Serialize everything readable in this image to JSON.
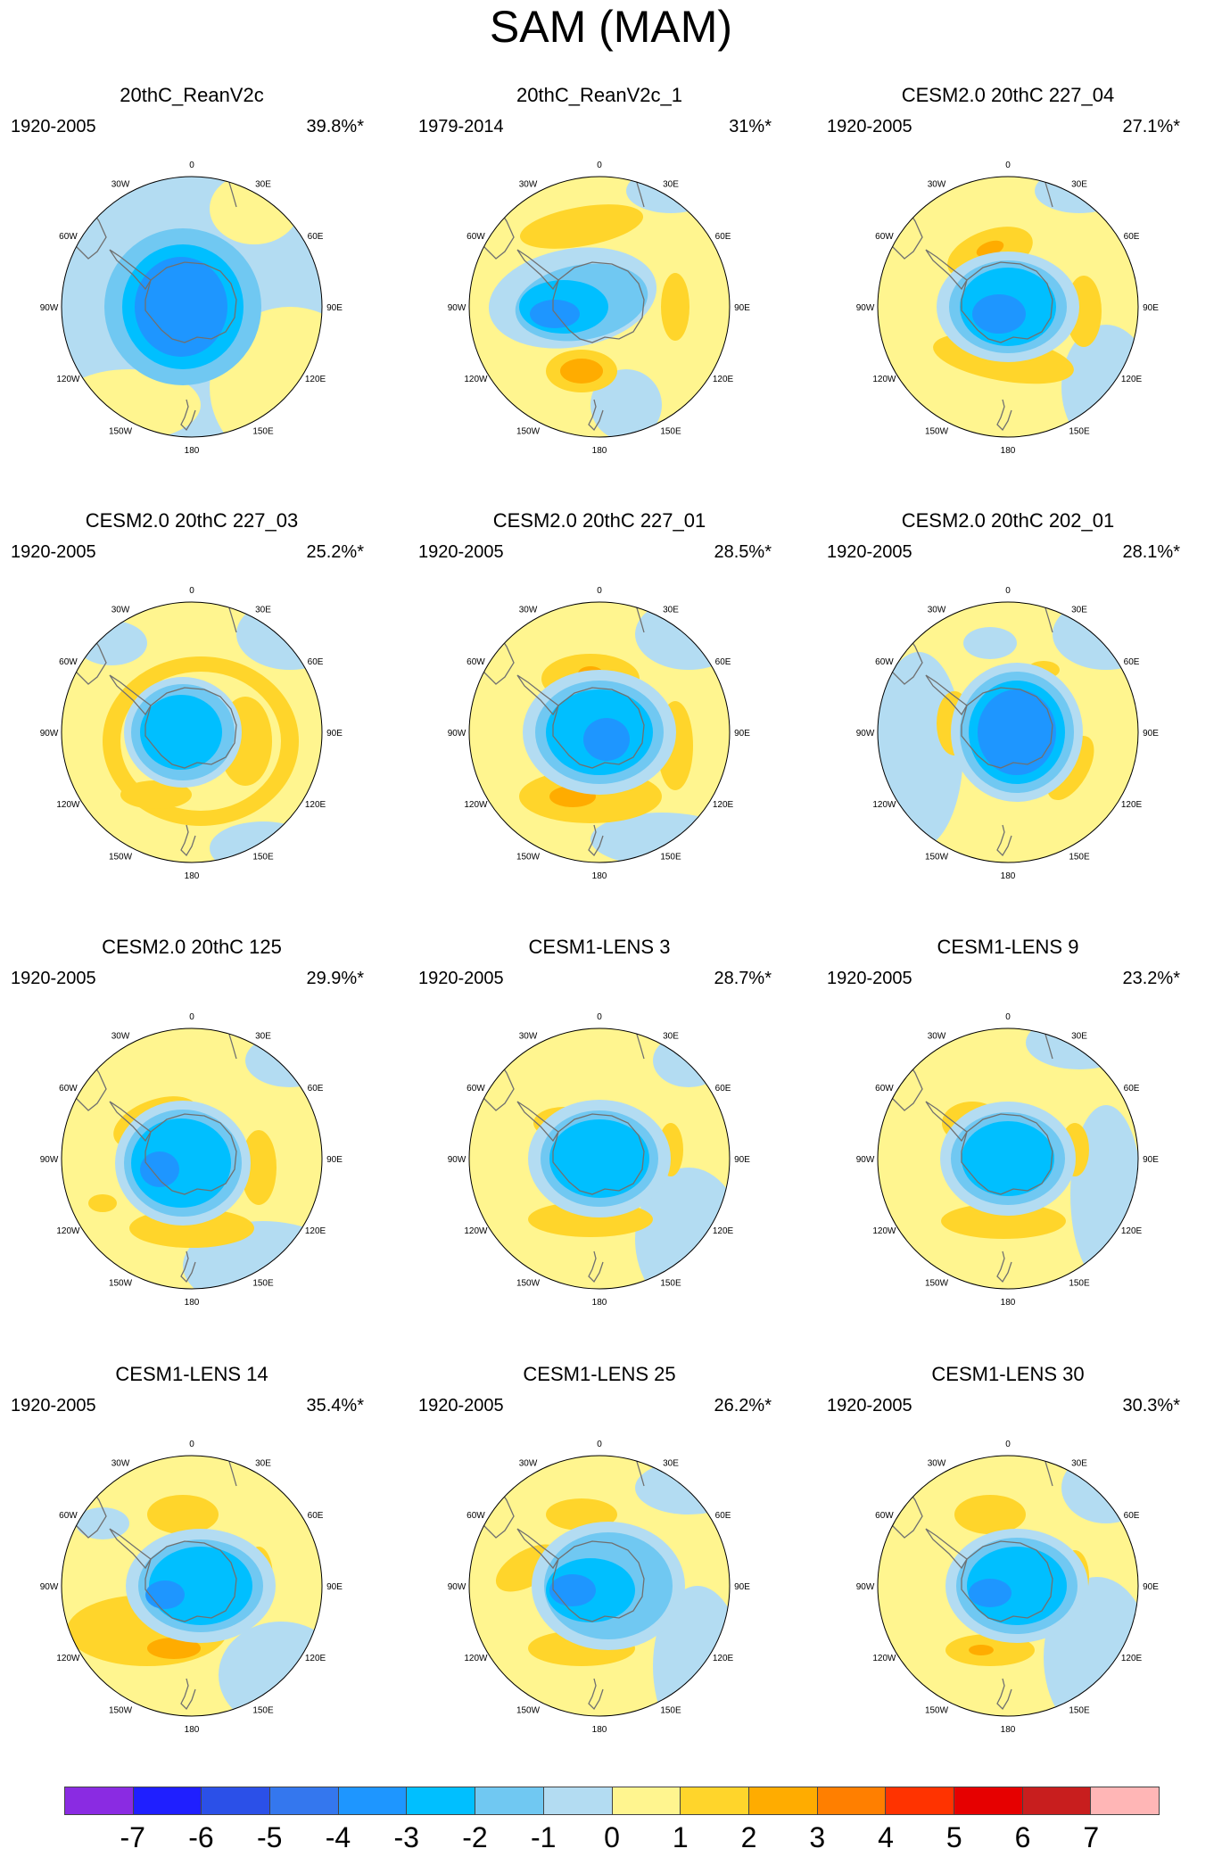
{
  "title": "SAM (MAM)",
  "longitude_labels": [
    "0",
    "30E",
    "60E",
    "90E",
    "120E",
    "150E",
    "180",
    "150W",
    "120W",
    "90W",
    "60W",
    "30W"
  ],
  "panels": [
    {
      "title": "20thC_ReanV2c",
      "period": "1920-2005",
      "variance": "39.8%*"
    },
    {
      "title": "20thC_ReanV2c_1",
      "period": "1979-2014",
      "variance": "31%*"
    },
    {
      "title": "CESM2.0 20thC 227_04",
      "period": "1920-2005",
      "variance": "27.1%*"
    },
    {
      "title": "CESM2.0 20thC 227_03",
      "period": "1920-2005",
      "variance": "25.2%*"
    },
    {
      "title": "CESM2.0 20thC 227_01",
      "period": "1920-2005",
      "variance": "28.5%*"
    },
    {
      "title": "CESM2.0 20thC 202_01",
      "period": "1920-2005",
      "variance": "28.1%*"
    },
    {
      "title": "CESM2.0 20thC 125",
      "period": "1920-2005",
      "variance": "29.9%*"
    },
    {
      "title": "CESM1-LENS 3",
      "period": "1920-2005",
      "variance": "28.7%*"
    },
    {
      "title": "CESM1-LENS 9",
      "period": "1920-2005",
      "variance": "23.2%*"
    },
    {
      "title": "CESM1-LENS 14",
      "period": "1920-2005",
      "variance": "35.4%*"
    },
    {
      "title": "CESM1-LENS 25",
      "period": "1920-2005",
      "variance": "26.2%*"
    },
    {
      "title": "CESM1-LENS 30",
      "period": "1920-2005",
      "variance": "30.3%*"
    }
  ],
  "colorbar": {
    "labels": [
      "-7",
      "-6",
      "-5",
      "-4",
      "-3",
      "-2",
      "-1",
      "0",
      "1",
      "2",
      "3",
      "4",
      "5",
      "6",
      "7"
    ],
    "colors": [
      "#8a2be2",
      "#1f1fff",
      "#2b50e8",
      "#3477ee",
      "#1e96ff",
      "#00bfff",
      "#70c8f2",
      "#b3dcf2",
      "#fff58f",
      "#ffd52b",
      "#ffac00",
      "#ff7f00",
      "#ff3300",
      "#e60000",
      "#c81e1e",
      "#ffb6b6"
    ]
  },
  "colors": {
    "neg1": "#b3dcf2",
    "neg2": "#70c8f2",
    "neg3": "#00bfff",
    "neg4": "#1e96ff",
    "neg5": "#3477ee",
    "pos1": "#fff58f",
    "pos2": "#ffd52b",
    "pos3": "#ffac00",
    "pos4": "#ff7f00",
    "coast": "#707070"
  }
}
